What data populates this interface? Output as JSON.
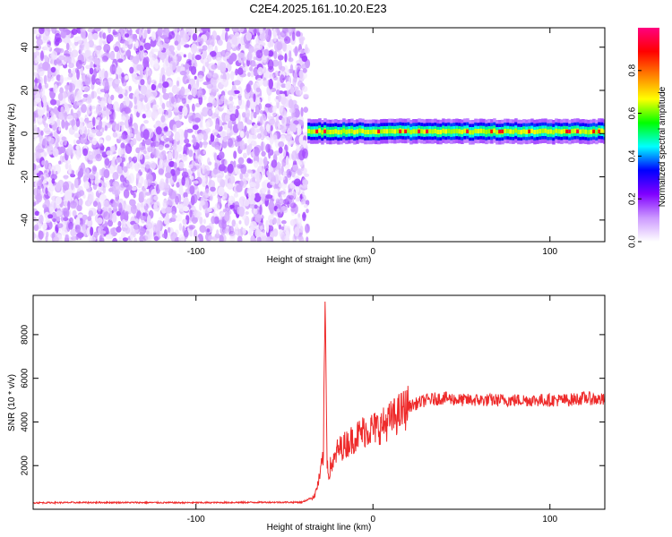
{
  "title": "C2E4.2025.161.10.20.E23",
  "chart_data": [
    {
      "type": "heatmap",
      "xlabel": "Height of straight line (km)",
      "ylabel": "Frequency (Hz)",
      "xlim": [
        -192,
        131
      ],
      "ylim": [
        -50,
        49
      ],
      "xticks": [
        -100,
        0,
        100
      ],
      "yticks": [
        -40,
        -20,
        0,
        20,
        40
      ],
      "colorbar": {
        "label": "Normalized spectral amplitude",
        "range": [
          0,
          1
        ],
        "ticks": [
          0.0,
          0.2,
          0.4,
          0.6,
          0.8
        ],
        "colormap": [
          "#ffffff",
          "#cc99ff",
          "#8000ff",
          "#0000ff",
          "#00ffff",
          "#00ff00",
          "#ffff00",
          "#ff8000",
          "#ff0000",
          "#ff0080"
        ]
      },
      "noise_region": {
        "x_range": [
          -192,
          -37
        ],
        "level": "low (0.0-0.15)"
      },
      "signal_band": {
        "x_range": [
          -37,
          131
        ],
        "center_frequency": 1,
        "half_width": 3
      }
    },
    {
      "type": "line",
      "xlabel": "Height of straight line (km)",
      "ylabel": "SNR (10 * v/v)",
      "xlim": [
        -192,
        131
      ],
      "ylim": [
        0,
        9800
      ],
      "xticks": [
        -100,
        0,
        100
      ],
      "yticks": [
        2000,
        4000,
        6000,
        8000
      ],
      "series": [
        {
          "color": "#ff0000",
          "x": [
            -192,
            -150,
            -100,
            -60,
            -40,
            -33,
            -30,
            -28,
            -27,
            -26,
            -25,
            -24,
            -22,
            -20,
            -15,
            -10,
            -5,
            0,
            5,
            10,
            20,
            30,
            40,
            50,
            60,
            70,
            80,
            90,
            100,
            110,
            120,
            131
          ],
          "y": [
            300,
            310,
            300,
            320,
            320,
            600,
            1500,
            2500,
            9800,
            2400,
            1500,
            2000,
            2200,
            2700,
            3000,
            3300,
            3600,
            3700,
            3800,
            4100,
            4700,
            5000,
            5100,
            5000,
            5000,
            5000,
            5000,
            5000,
            5000,
            5000,
            5100,
            5000
          ]
        }
      ]
    }
  ]
}
